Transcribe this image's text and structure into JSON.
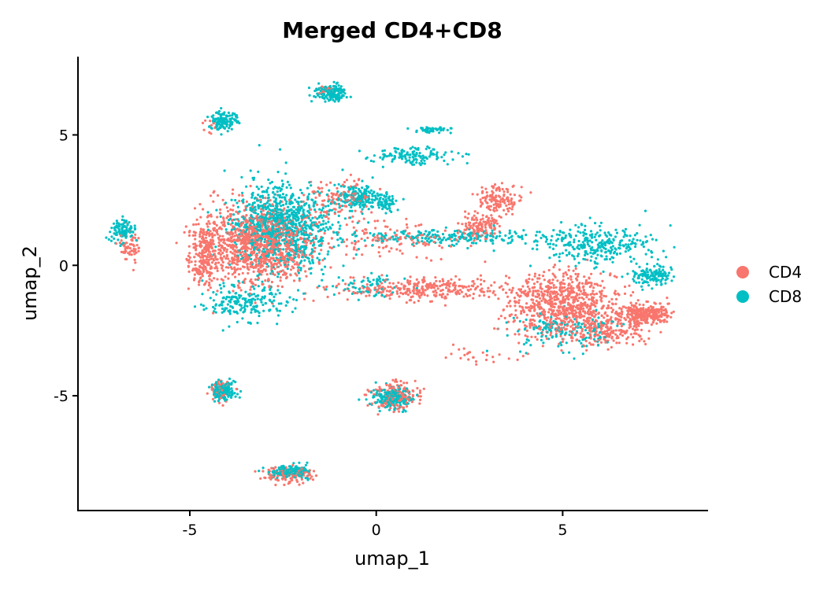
{
  "chart_data": {
    "type": "scatter",
    "title": "Merged CD4+CD8",
    "xlabel": "umap_1",
    "ylabel": "umap_2",
    "xlim": [
      -8.0,
      8.9
    ],
    "ylim": [
      -9.4,
      8.0
    ],
    "xticks": [
      -5,
      0,
      5
    ],
    "xtick_labels": [
      "-5",
      "0",
      "5"
    ],
    "yticks": [
      -5,
      0,
      5
    ],
    "ytick_labels": [
      "-5",
      "0",
      "5"
    ],
    "grid": false,
    "legend_position": "right",
    "series": [
      {
        "name": "CD4",
        "color": "#F8766D",
        "clusters": [
          {
            "center": [
              -3.2,
              0.8
            ],
            "spread": [
              1.25,
              1.2
            ],
            "n": 1100
          },
          {
            "center": [
              -4.6,
              0.5
            ],
            "spread": [
              0.35,
              1.2
            ],
            "n": 220
          },
          {
            "center": [
              -1.0,
              2.5
            ],
            "spread": [
              0.8,
              0.7
            ],
            "n": 120
          },
          {
            "center": [
              1.2,
              -0.9
            ],
            "spread": [
              1.9,
              0.35
            ],
            "n": 300
          },
          {
            "center": [
              2.8,
              1.5
            ],
            "spread": [
              0.5,
              0.4
            ],
            "n": 120
          },
          {
            "center": [
              3.3,
              2.5
            ],
            "spread": [
              0.5,
              0.45
            ],
            "n": 130
          },
          {
            "center": [
              5.0,
              -1.5
            ],
            "spread": [
              1.3,
              1.05
            ],
            "n": 800
          },
          {
            "center": [
              7.2,
              -1.9
            ],
            "spread": [
              0.6,
              0.35
            ],
            "n": 300
          },
          {
            "center": [
              6.1,
              -2.6
            ],
            "spread": [
              0.9,
              0.35
            ],
            "n": 150
          },
          {
            "center": [
              -6.6,
              0.7
            ],
            "spread": [
              0.25,
              0.55
            ],
            "n": 60
          },
          {
            "center": [
              -4.2,
              -4.8
            ],
            "spread": [
              0.25,
              0.35
            ],
            "n": 50
          },
          {
            "center": [
              0.5,
              -5.0
            ],
            "spread": [
              0.55,
              0.45
            ],
            "n": 160
          },
          {
            "center": [
              -2.4,
              -8.0
            ],
            "spread": [
              0.55,
              0.28
            ],
            "n": 120
          },
          {
            "center": [
              -1.3,
              6.7
            ],
            "spread": [
              0.25,
              0.15
            ],
            "n": 15
          },
          {
            "center": [
              -4.5,
              5.3
            ],
            "spread": [
              0.2,
              0.2
            ],
            "n": 10
          },
          {
            "center": [
              2.8,
              -3.5
            ],
            "spread": [
              1.0,
              0.3
            ],
            "n": 25
          },
          {
            "center": [
              0.5,
              1.0
            ],
            "spread": [
              1.6,
              0.6
            ],
            "n": 120
          }
        ]
      },
      {
        "name": "CD8",
        "color": "#00BFC4",
        "clusters": [
          {
            "center": [
              -2.5,
              1.5
            ],
            "spread": [
              1.15,
              1.3
            ],
            "n": 950
          },
          {
            "center": [
              -3.5,
              -1.4
            ],
            "spread": [
              0.9,
              0.55
            ],
            "n": 200
          },
          {
            "center": [
              -0.5,
              2.6
            ],
            "spread": [
              0.55,
              0.4
            ],
            "n": 180
          },
          {
            "center": [
              0.3,
              2.4
            ],
            "spread": [
              0.25,
              0.25
            ],
            "n": 60
          },
          {
            "center": [
              1.0,
              4.2
            ],
            "spread": [
              1.0,
              0.3
            ],
            "n": 130
          },
          {
            "center": [
              1.5,
              5.2
            ],
            "spread": [
              0.4,
              0.1
            ],
            "n": 50
          },
          {
            "center": [
              2.0,
              1.1
            ],
            "spread": [
              2.2,
              0.25
            ],
            "n": 220
          },
          {
            "center": [
              5.8,
              0.8
            ],
            "spread": [
              1.4,
              0.6
            ],
            "n": 300
          },
          {
            "center": [
              7.4,
              -0.4
            ],
            "spread": [
              0.5,
              0.35
            ],
            "n": 130
          },
          {
            "center": [
              5.0,
              -2.5
            ],
            "spread": [
              1.2,
              0.6
            ],
            "n": 150
          },
          {
            "center": [
              -6.8,
              1.3
            ],
            "spread": [
              0.25,
              0.35
            ],
            "n": 110
          },
          {
            "center": [
              -4.1,
              5.5
            ],
            "spread": [
              0.3,
              0.35
            ],
            "n": 120
          },
          {
            "center": [
              -1.2,
              6.6
            ],
            "spread": [
              0.35,
              0.25
            ],
            "n": 150
          },
          {
            "center": [
              -4.1,
              -4.8
            ],
            "spread": [
              0.25,
              0.3
            ],
            "n": 150
          },
          {
            "center": [
              0.4,
              -5.1
            ],
            "spread": [
              0.5,
              0.35
            ],
            "n": 200
          },
          {
            "center": [
              -2.3,
              -7.9
            ],
            "spread": [
              0.45,
              0.22
            ],
            "n": 150
          },
          {
            "center": [
              -0.2,
              -0.8
            ],
            "spread": [
              0.8,
              0.4
            ],
            "n": 70
          }
        ]
      }
    ]
  }
}
